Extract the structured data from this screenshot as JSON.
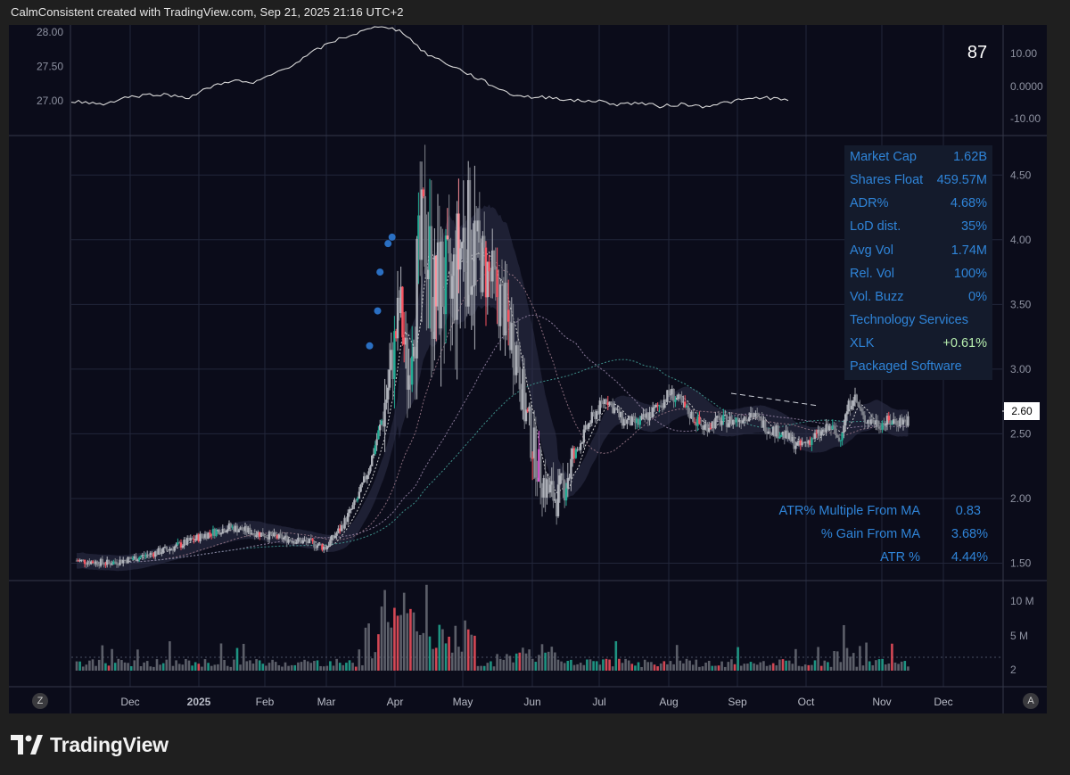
{
  "caption": "CalmConsistent created with TradingView.com, Sep 21, 2025 21:16 UTC+2",
  "logo_text": "TradingView",
  "rs_value": "87",
  "last_price_label": "2.60",
  "corner_left": "Z",
  "corner_right": "A",
  "stats": [
    {
      "label": "Market Cap",
      "value": "1.62B"
    },
    {
      "label": "Shares Float",
      "value": "459.57M"
    },
    {
      "label": "ADR%",
      "value": "4.68%"
    },
    {
      "label": "LoD dist.",
      "value": "35%"
    },
    {
      "label": "Avg Vol",
      "value": "1.74M"
    },
    {
      "label": "Rel. Vol",
      "value": "100%"
    },
    {
      "label": "Vol. Buzz",
      "value": "0%"
    },
    {
      "label": "Technology Services",
      "value": ""
    },
    {
      "label": "XLK",
      "value": "+0.61%"
    },
    {
      "label": "Packaged Software",
      "value": ""
    }
  ],
  "atr_stats": [
    {
      "label": "ATR% Multiple From MA",
      "value": "0.83"
    },
    {
      "label": "% Gain From MA",
      "value": "3.68%"
    },
    {
      "label": "ATR %",
      "value": "4.44%"
    }
  ],
  "colors": {
    "background": "#0b0c1a",
    "frame": "#1f1f1f",
    "up": "#22ab94",
    "down": "#f7525f",
    "neutral": "#b0b3bb",
    "magenta": "#e052d6",
    "pink": "#ff8f9a",
    "accent_blue": "#2f84d8"
  },
  "chart_data": {
    "type": "candlestick",
    "time_axis": {
      "labels": [
        "Dec",
        "2025",
        "Feb",
        "Mar",
        "Apr",
        "May",
        "Jun",
        "Jul",
        "Aug",
        "Sep",
        "Oct",
        "Nov",
        "Dec"
      ]
    },
    "price_axis": {
      "ticks": [
        "1.50",
        "2.00",
        "2.50",
        "3.00",
        "3.50",
        "4.00",
        "4.50"
      ],
      "range": [
        1.4,
        4.75
      ],
      "last_price": 2.6
    },
    "upper_pane": {
      "left_ticks": [
        "27.00",
        "27.50",
        "28.00"
      ],
      "right_ticks": [
        "-10.00",
        "0.0000",
        "10.00"
      ],
      "value": 87
    },
    "volume_pane": {
      "ticks": [
        "2",
        "5 M",
        "10 M"
      ]
    },
    "price_path": [
      [
        0,
        1.52
      ],
      [
        4,
        1.5
      ],
      [
        8,
        1.55
      ],
      [
        12,
        1.62
      ],
      [
        16,
        1.72
      ],
      [
        19,
        1.78
      ],
      [
        22,
        1.74
      ],
      [
        25,
        1.7
      ],
      [
        29,
        1.66
      ],
      [
        31,
        1.62
      ],
      [
        33,
        1.78
      ],
      [
        35,
        2.0
      ],
      [
        36.5,
        2.25
      ],
      [
        38,
        2.6
      ],
      [
        39.2,
        3.0
      ],
      [
        40.3,
        3.5
      ],
      [
        41.3,
        2.9
      ],
      [
        42.3,
        3.6
      ],
      [
        43.5,
        4.1
      ],
      [
        44.5,
        3.5
      ],
      [
        45.5,
        3.7
      ],
      [
        46.5,
        3.5
      ],
      [
        48,
        4.0
      ],
      [
        49.5,
        3.95
      ],
      [
        51.5,
        3.7
      ],
      [
        53,
        3.5
      ],
      [
        54,
        3.3
      ],
      [
        55,
        3.1
      ],
      [
        55.8,
        2.7
      ],
      [
        56.7,
        2.45
      ],
      [
        57.7,
        2.2
      ],
      [
        58.8,
        2.05
      ],
      [
        60,
        2.0
      ],
      [
        61.3,
        2.2
      ],
      [
        62.5,
        2.4
      ],
      [
        64,
        2.6
      ],
      [
        66,
        2.78
      ],
      [
        68,
        2.6
      ],
      [
        70,
        2.58
      ],
      [
        72,
        2.68
      ],
      [
        74,
        2.82
      ],
      [
        76,
        2.68
      ],
      [
        78,
        2.55
      ],
      [
        80,
        2.6
      ],
      [
        82,
        2.6
      ],
      [
        84,
        2.66
      ],
      [
        86,
        2.55
      ],
      [
        88,
        2.5
      ],
      [
        90,
        2.4
      ],
      [
        92,
        2.48
      ],
      [
        94,
        2.55
      ],
      [
        95,
        2.45
      ],
      [
        96,
        2.68
      ],
      [
        96.8,
        2.8
      ],
      [
        98,
        2.62
      ],
      [
        100,
        2.58
      ],
      [
        102,
        2.6
      ],
      [
        103.5,
        2.6
      ]
    ],
    "upper_line_path": [
      [
        0,
        27.0
      ],
      [
        3,
        26.95
      ],
      [
        5,
        27.05
      ],
      [
        8,
        27.1
      ],
      [
        11,
        27.05
      ],
      [
        13,
        27.2
      ],
      [
        15,
        27.3
      ],
      [
        17,
        27.25
      ],
      [
        19,
        27.4
      ],
      [
        21,
        27.55
      ],
      [
        23,
        27.75
      ],
      [
        25,
        27.9
      ],
      [
        27,
        28.0
      ],
      [
        29,
        28.1
      ],
      [
        31,
        28.0
      ],
      [
        33,
        27.7
      ],
      [
        35,
        27.55
      ],
      [
        37,
        27.4
      ],
      [
        39,
        27.25
      ],
      [
        41,
        27.1
      ],
      [
        43,
        27.05
      ],
      [
        45,
        27.05
      ],
      [
        47,
        27.0
      ],
      [
        49,
        27.0
      ],
      [
        51,
        26.95
      ],
      [
        53,
        26.97
      ],
      [
        55,
        26.92
      ],
      [
        57,
        26.95
      ],
      [
        59,
        26.92
      ],
      [
        61,
        26.97
      ],
      [
        63,
        27.02
      ],
      [
        65,
        27.05
      ],
      [
        67,
        27.0
      ]
    ]
  }
}
